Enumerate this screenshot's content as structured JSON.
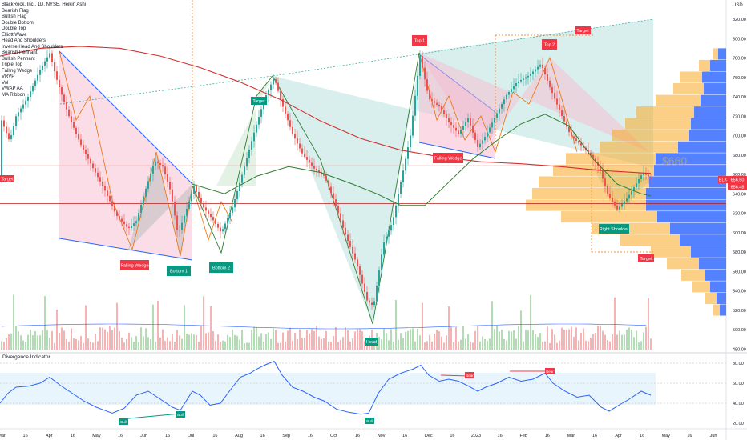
{
  "header": {
    "symbol_title": "BlackRock, Inc., 1D, NYSE, Heikin Ashi",
    "currency": "USD"
  },
  "legend_items": [
    "Bearish Flag",
    "Bullish Flag",
    "Double Bottom",
    "Double Top",
    "Elliott Wave",
    "Head And Shoulders",
    "Inverse Head And Shoulders",
    "Bearish Pennant",
    "Bullish Pennant",
    "Triple Top",
    "Falling Wedge",
    "VRVP",
    "Vol",
    "VWAP AA",
    "MA Ribbon"
  ],
  "annotations": {
    "target_left": "Target",
    "falling_wedge_1": "Falling Wedge",
    "bottom_1": "Bottom 1",
    "bottom_2": "Bottom 2",
    "target_mid": "Target",
    "head": "Head",
    "top_1": "Top 1",
    "falling_wedge_2": "Falling Wedge",
    "top_2": "Top 2",
    "target_top": "Target",
    "right_shoulder": "Right Shoulder",
    "target_bottom": "Target",
    "price_watermark": "$660",
    "bear_1": "Bear",
    "bear_2": "Bear",
    "bull_1": "Bull",
    "bull_2": "Bull",
    "bull_3": "Bull"
  },
  "price_badges": {
    "ticker": "BLK",
    "last": "656.50",
    "vwap": "656.48"
  },
  "oscillator": {
    "title": "Divergence Indicator",
    "ticks": [
      "80.00",
      "60.00",
      "40.00",
      "20.00"
    ]
  },
  "colors": {
    "up": "#26a69a",
    "down": "#ef5350",
    "ma": "#d32f2f",
    "ma2": "#2e7d32",
    "osc": "#2962ff",
    "label_red": "#f23645",
    "label_green": "#089981"
  },
  "chart_data": {
    "type": "candlestick",
    "style": "Heikin Ashi",
    "interval": "1D",
    "x_ticks": [
      "Mar",
      "16",
      "Apr",
      "16",
      "May",
      "16",
      "Jun",
      "16",
      "Jul",
      "16",
      "Aug",
      "16",
      "Sep",
      "16",
      "Oct",
      "16",
      "Nov",
      "16",
      "Dec",
      "16",
      "2023",
      "16",
      "Feb",
      "16",
      "Mar",
      "16",
      "Apr",
      "16",
      "May",
      "16",
      "Jun",
      "16"
    ],
    "y_ticks": [
      820,
      800,
      780,
      760,
      740,
      720,
      700,
      680,
      660,
      640,
      620,
      600,
      580,
      560,
      540,
      520,
      500,
      480
    ],
    "ylim": [
      476,
      830
    ],
    "price_path": [
      [
        0,
        720
      ],
      [
        12,
        694
      ],
      [
        20,
        720
      ],
      [
        35,
        740
      ],
      [
        50,
        768
      ],
      [
        62,
        785
      ],
      [
        70,
        760
      ],
      [
        85,
        722
      ],
      [
        100,
        692
      ],
      [
        115,
        668
      ],
      [
        130,
        645
      ],
      [
        145,
        618
      ],
      [
        160,
        604
      ],
      [
        170,
        612
      ],
      [
        180,
        640
      ],
      [
        193,
        674
      ],
      [
        203,
        668
      ],
      [
        213,
        642
      ],
      [
        222,
        598
      ],
      [
        232,
        622
      ],
      [
        242,
        648
      ],
      [
        252,
        628
      ],
      [
        265,
        614
      ],
      [
        276,
        600
      ],
      [
        290,
        626
      ],
      [
        305,
        668
      ],
      [
        318,
        706
      ],
      [
        330,
        738
      ],
      [
        342,
        760
      ],
      [
        352,
        732
      ],
      [
        365,
        702
      ],
      [
        378,
        680
      ],
      [
        392,
        666
      ],
      [
        405,
        658
      ],
      [
        418,
        630
      ],
      [
        430,
        600
      ],
      [
        445,
        568
      ],
      [
        458,
        530
      ],
      [
        466,
        524
      ],
      [
        478,
        588
      ],
      [
        490,
        612
      ],
      [
        500,
        652
      ],
      [
        512,
        700
      ],
      [
        524,
        782
      ],
      [
        535,
        738
      ],
      [
        548,
        730
      ],
      [
        560,
        714
      ],
      [
        572,
        702
      ],
      [
        584,
        718
      ],
      [
        596,
        688
      ],
      [
        606,
        700
      ],
      [
        618,
        720
      ],
      [
        632,
        742
      ],
      [
        645,
        755
      ],
      [
        660,
        762
      ],
      [
        675,
        774
      ],
      [
        686,
        750
      ],
      [
        700,
        722
      ],
      [
        712,
        700
      ],
      [
        725,
        690
      ],
      [
        737,
        680
      ],
      [
        748,
        666
      ],
      [
        758,
        640
      ],
      [
        770,
        624
      ],
      [
        782,
        635
      ],
      [
        792,
        648
      ],
      [
        802,
        662
      ],
      [
        812,
        656
      ]
    ],
    "ma_red": [
      [
        0,
        782
      ],
      [
        50,
        790
      ],
      [
        100,
        792
      ],
      [
        150,
        790
      ],
      [
        200,
        782
      ],
      [
        250,
        770
      ],
      [
        300,
        755
      ],
      [
        350,
        737
      ],
      [
        400,
        715
      ],
      [
        450,
        697
      ],
      [
        500,
        685
      ],
      [
        550,
        678
      ],
      [
        600,
        673
      ],
      [
        650,
        671
      ],
      [
        700,
        668
      ],
      [
        750,
        664
      ],
      [
        812,
        661
      ]
    ],
    "ma_green": [
      [
        240,
        650
      ],
      [
        280,
        640
      ],
      [
        320,
        658
      ],
      [
        360,
        668
      ],
      [
        400,
        662
      ],
      [
        440,
        650
      ],
      [
        470,
        640
      ],
      [
        500,
        628
      ],
      [
        530,
        628
      ],
      [
        560,
        652
      ],
      [
        590,
        676
      ],
      [
        620,
        695
      ],
      [
        650,
        712
      ],
      [
        680,
        722
      ],
      [
        710,
        710
      ],
      [
        740,
        676
      ],
      [
        770,
        650
      ],
      [
        800,
        640
      ],
      [
        812,
        638
      ]
    ],
    "horizontal_levels": [
      630,
      669
    ],
    "volume_profile": [
      {
        "price": 784,
        "up": 6,
        "down": 10
      },
      {
        "price": 772,
        "up": 14,
        "down": 20
      },
      {
        "price": 760,
        "up": 28,
        "down": 30
      },
      {
        "price": 748,
        "up": 38,
        "down": 28
      },
      {
        "price": 736,
        "up": 56,
        "down": 32
      },
      {
        "price": 724,
        "up": 72,
        "down": 40
      },
      {
        "price": 712,
        "up": 82,
        "down": 44
      },
      {
        "price": 700,
        "up": 96,
        "down": 46
      },
      {
        "price": 688,
        "up": 98,
        "down": 60
      },
      {
        "price": 676,
        "up": 112,
        "down": 88
      },
      {
        "price": 664,
        "up": 126,
        "down": 90
      },
      {
        "price": 652,
        "up": 138,
        "down": 96
      },
      {
        "price": 640,
        "up": 142,
        "down": 100
      },
      {
        "price": 628,
        "up": 150,
        "down": 100
      },
      {
        "price": 616,
        "up": 120,
        "down": 86
      },
      {
        "price": 604,
        "up": 98,
        "down": 70
      },
      {
        "price": 592,
        "up": 74,
        "down": 58
      },
      {
        "price": 580,
        "up": 50,
        "down": 44
      },
      {
        "price": 568,
        "up": 40,
        "down": 34
      },
      {
        "price": 556,
        "up": 30,
        "down": 26
      },
      {
        "price": 544,
        "up": 22,
        "down": 20
      },
      {
        "price": 532,
        "up": 14,
        "down": 12
      },
      {
        "price": 520,
        "up": 8,
        "down": 8
      }
    ],
    "oscillator_path": [
      [
        0,
        40
      ],
      [
        10,
        50
      ],
      [
        20,
        56
      ],
      [
        35,
        57
      ],
      [
        50,
        60
      ],
      [
        62,
        66
      ],
      [
        75,
        58
      ],
      [
        90,
        50
      ],
      [
        105,
        42
      ],
      [
        120,
        36
      ],
      [
        140,
        30
      ],
      [
        155,
        35
      ],
      [
        170,
        48
      ],
      [
        185,
        52
      ],
      [
        200,
        44
      ],
      [
        215,
        36
      ],
      [
        225,
        33
      ],
      [
        240,
        52
      ],
      [
        250,
        48
      ],
      [
        262,
        38
      ],
      [
        275,
        40
      ],
      [
        290,
        56
      ],
      [
        300,
        66
      ],
      [
        312,
        70
      ],
      [
        320,
        74
      ],
      [
        330,
        78
      ],
      [
        342,
        82
      ],
      [
        352,
        68
      ],
      [
        365,
        56
      ],
      [
        378,
        52
      ],
      [
        392,
        46
      ],
      [
        405,
        42
      ],
      [
        420,
        34
      ],
      [
        435,
        31
      ],
      [
        450,
        29
      ],
      [
        460,
        30
      ],
      [
        472,
        50
      ],
      [
        485,
        64
      ],
      [
        500,
        70
      ],
      [
        515,
        74
      ],
      [
        525,
        78
      ],
      [
        535,
        68
      ],
      [
        548,
        62
      ],
      [
        560,
        64
      ],
      [
        572,
        62
      ],
      [
        585,
        57
      ],
      [
        596,
        52
      ],
      [
        606,
        56
      ],
      [
        620,
        60
      ],
      [
        635,
        66
      ],
      [
        650,
        62
      ],
      [
        665,
        64
      ],
      [
        680,
        70
      ],
      [
        690,
        60
      ],
      [
        705,
        52
      ],
      [
        720,
        46
      ],
      [
        735,
        48
      ],
      [
        750,
        36
      ],
      [
        760,
        32
      ],
      [
        772,
        38
      ],
      [
        785,
        44
      ],
      [
        800,
        52
      ],
      [
        812,
        48
      ]
    ]
  }
}
